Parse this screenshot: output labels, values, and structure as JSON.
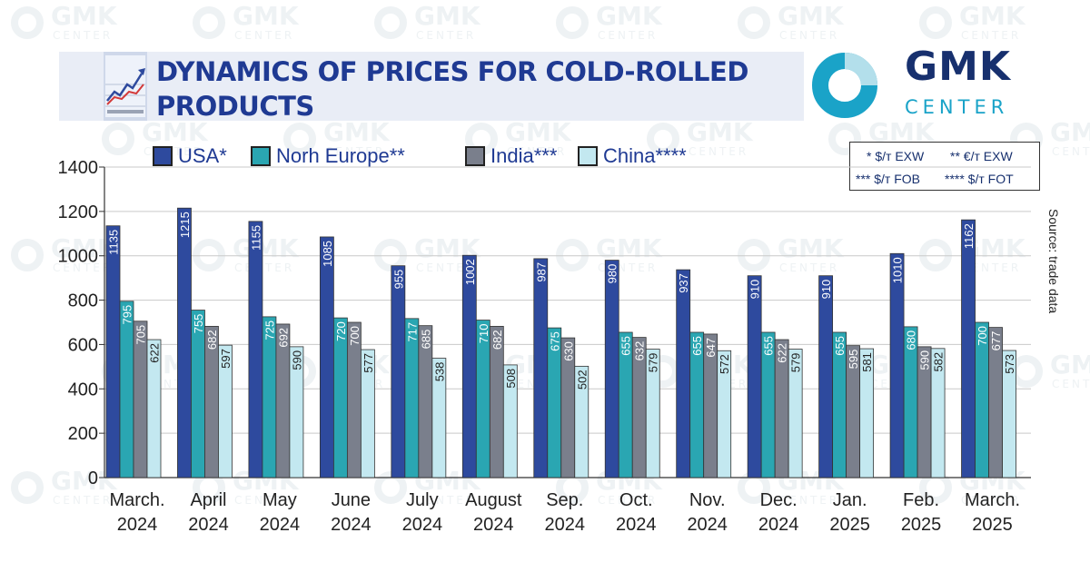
{
  "title": "DYNAMICS OF PRICES FOR COLD-ROLLED PRODUCTS",
  "logo": {
    "main": "GMK",
    "sub": "CENTER"
  },
  "watermark": {
    "main": "GMK",
    "sub": "CENTER"
  },
  "units": {
    "usa": "* $/т EXW",
    "europe": "** €/т EXW",
    "india": "*** $/т FOB",
    "china": "**** $/т FOT"
  },
  "source": "Source: trade data",
  "colors": {
    "usa": "#2e4a9e",
    "europe": "#2aa6b2",
    "india": "#7a7f8c",
    "china": "#c3e8f0",
    "title": "#1f3a93",
    "logo_ring": "#1aa3c8"
  },
  "chart_data": {
    "type": "bar",
    "ylim": [
      0,
      1400
    ],
    "yticks": [
      "0",
      "200",
      "400",
      "600",
      "800",
      "1000",
      "1200",
      "1400"
    ],
    "categories": [
      [
        "March.",
        "2024"
      ],
      [
        "April",
        "2024"
      ],
      [
        "May",
        "2024"
      ],
      [
        "June",
        "2024"
      ],
      [
        "July",
        "2024"
      ],
      [
        "August",
        "2024"
      ],
      [
        "Sep.",
        "2024"
      ],
      [
        "Oct.",
        "2024"
      ],
      [
        "Nov.",
        "2024"
      ],
      [
        "Dec.",
        "2024"
      ],
      [
        "Jan.",
        "2025"
      ],
      [
        "Feb.",
        "2025"
      ],
      [
        "March.",
        "2025"
      ]
    ],
    "series": [
      {
        "name": "USA*",
        "values": [
          1135,
          1215,
          1155,
          1085,
          955,
          1002,
          987,
          980,
          937,
          910,
          910,
          1010,
          1162
        ]
      },
      {
        "name": "Norh Europe**",
        "values": [
          795,
          755,
          725,
          720,
          717,
          710,
          675,
          655,
          655,
          655,
          655,
          680,
          700
        ]
      },
      {
        "name": "India***",
        "values": [
          705,
          682,
          692,
          700,
          685,
          682,
          630,
          632,
          647,
          622,
          595,
          590,
          677
        ]
      },
      {
        "name": "China****",
        "values": [
          622,
          597,
          590,
          577,
          538,
          508,
          502,
          579,
          572,
          579,
          581,
          582,
          573
        ]
      }
    ],
    "grid": true,
    "legend": "top"
  }
}
